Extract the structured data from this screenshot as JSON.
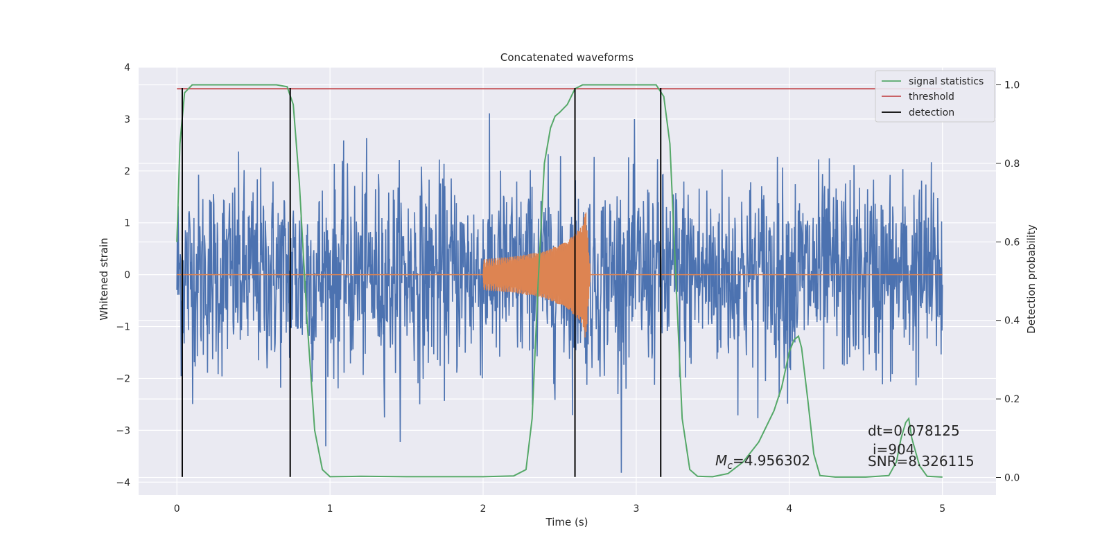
{
  "chart_data": {
    "type": "line",
    "title": "Concatenated waveforms",
    "xlabel": "Time (s)",
    "ylabel": "Whitened strain",
    "y2label": "Detection probability",
    "xlim": [
      -0.25,
      5.35
    ],
    "ylim": [
      -4.25,
      4.0
    ],
    "y2lim": [
      -0.045,
      1.045
    ],
    "x_ticks": [
      0,
      1,
      2,
      3,
      4,
      5
    ],
    "y_ticks": [
      -4,
      -3,
      -2,
      -1,
      0,
      1,
      2,
      3,
      4
    ],
    "y2_ticks": [
      0.0,
      0.2,
      0.4,
      0.6,
      0.8,
      1.0
    ],
    "grid": true,
    "legend_position": "top-right",
    "colors": {
      "background": "#eaeaf2",
      "grid": "#ffffff",
      "strain": "#4c72b0",
      "template": "#dd8452",
      "signal": "#55a868",
      "threshold": "#c44e52",
      "detection": "#000000"
    },
    "series": [
      {
        "name": "",
        "kind": "noise",
        "axis": "left",
        "x_range": [
          0,
          5
        ],
        "amplitude_typical": 2.2,
        "amplitude_peak": 3.6
      },
      {
        "name": "",
        "kind": "chirp",
        "axis": "left",
        "x": [
          0,
          2.0,
          2.0,
          2.2,
          2.4,
          2.55,
          2.65,
          2.67,
          2.7,
          5.0
        ],
        "envelope": [
          0,
          0.3,
          0.3,
          0.35,
          0.45,
          0.65,
          0.95,
          1.3,
          0.05,
          0
        ]
      },
      {
        "name": "signal statistics",
        "axis": "right",
        "x": [
          0.0,
          0.02,
          0.05,
          0.1,
          0.3,
          0.5,
          0.65,
          0.72,
          0.76,
          0.8,
          0.85,
          0.9,
          0.95,
          1.0,
          1.2,
          1.5,
          2.0,
          2.2,
          2.28,
          2.32,
          2.36,
          2.4,
          2.44,
          2.47,
          2.5,
          2.55,
          2.6,
          2.65,
          2.7,
          2.8,
          3.0,
          3.13,
          3.18,
          3.22,
          3.26,
          3.3,
          3.35,
          3.4,
          3.5,
          3.6,
          3.7,
          3.8,
          3.9,
          3.95,
          4.0,
          4.03,
          4.06,
          4.08,
          4.12,
          4.16,
          4.2,
          4.3,
          4.5,
          4.65,
          4.7,
          4.73,
          4.76,
          4.78,
          4.8,
          4.85,
          4.9,
          5.0
        ],
        "values": [
          0.6,
          0.85,
          0.98,
          1.0,
          1.0,
          1.0,
          1.0,
          0.995,
          0.95,
          0.75,
          0.4,
          0.12,
          0.02,
          0.002,
          0.003,
          0.002,
          0.002,
          0.004,
          0.02,
          0.15,
          0.5,
          0.8,
          0.89,
          0.92,
          0.93,
          0.95,
          0.99,
          1.0,
          1.0,
          1.0,
          1.0,
          1.0,
          0.97,
          0.85,
          0.5,
          0.15,
          0.02,
          0.003,
          0.002,
          0.01,
          0.04,
          0.09,
          0.17,
          0.23,
          0.32,
          0.35,
          0.36,
          0.33,
          0.2,
          0.06,
          0.005,
          0.001,
          0.001,
          0.005,
          0.04,
          0.1,
          0.14,
          0.15,
          0.1,
          0.03,
          0.003,
          0.001
        ]
      },
      {
        "name": "threshold",
        "axis": "right",
        "x": [
          0.0,
          5.0
        ],
        "values": [
          0.99,
          0.99
        ]
      },
      {
        "name": "detection",
        "axis": "left",
        "vertical_lines": [
          0.035,
          0.74,
          2.6,
          3.16
        ],
        "y_span": [
          -3.9,
          3.6
        ]
      }
    ],
    "legend": [
      "signal statistics",
      "threshold",
      "detection"
    ],
    "annotations": {
      "mc_label": "M",
      "mc_sub": "c",
      "mc_value": "=4.956302",
      "dt": "dt=0.078125",
      "i": "i=904",
      "snr": "SNR=8.326115"
    }
  }
}
